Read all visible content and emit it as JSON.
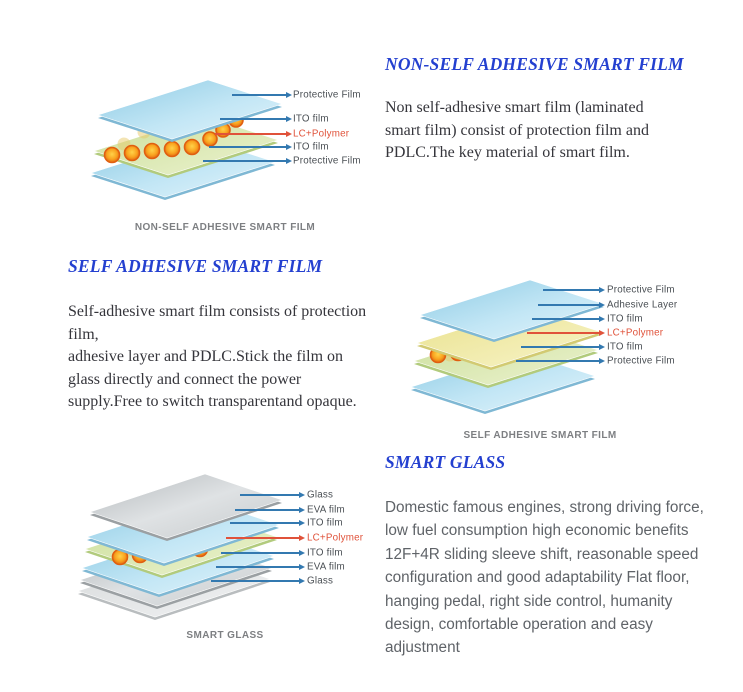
{
  "colors": {
    "heading_blue": "#2440d0",
    "leader_line_blue": "#3379b0",
    "accent_red": "#e0523a",
    "label_text_gray": "#4a4f54",
    "caption_gray": "#7d7f82"
  },
  "sections": {
    "non_self_adhesive": {
      "heading": "NON-SELF ADHESIVE SMART FILM",
      "body_lines": [
        "Non self-adhesive smart film (laminated",
        "smart film) consist of protection film and",
        "PDLC.The key material of smart film."
      ]
    },
    "self_adhesive": {
      "heading": "SELF ADHESIVE SMART FILM",
      "body_lines": [
        "Self-adhesive smart film consists of protection",
        "film,",
        "adhesive layer and PDLC.Stick the film on",
        "glass directly and connect the power",
        "supply.Free to switch transparentand opaque."
      ]
    },
    "smart_glass": {
      "heading": "SMART GLASS",
      "body_lines": [
        "Domestic famous engines, strong driving force,",
        "low fuel consumption high economic benefits",
        "12F+4R sliding sleeve shift, reasonable speed",
        "configuration and good adaptability Flat floor,",
        "hanging pedal, right side control, humanity",
        "design, comfortable operation and easy",
        "adjustment"
      ]
    }
  },
  "diagrams": [
    {
      "caption": "NON-SELF ADHESIVE SMART FILM",
      "labels": [
        {
          "text": "Protective Film",
          "accent": false
        },
        {
          "text": "ITO film",
          "accent": false
        },
        {
          "text": "LC+Polymer",
          "accent": true
        },
        {
          "text": "ITO film",
          "accent": false
        },
        {
          "text": "Protective Film",
          "accent": false
        }
      ]
    },
    {
      "caption": "SELF ADHESIVE SMART FILM",
      "labels": [
        {
          "text": "Protective Film",
          "accent": false
        },
        {
          "text": "Adhesive Layer",
          "accent": false
        },
        {
          "text": "ITO film",
          "accent": false
        },
        {
          "text": "LC+Polymer",
          "accent": true
        },
        {
          "text": "ITO film",
          "accent": false
        },
        {
          "text": "Protective Film",
          "accent": false
        }
      ]
    },
    {
      "caption": "SMART GLASS",
      "labels": [
        {
          "text": "Glass",
          "accent": false
        },
        {
          "text": "EVA film",
          "accent": false
        },
        {
          "text": "ITO film",
          "accent": false
        },
        {
          "text": "LC+Polymer",
          "accent": true
        },
        {
          "text": "ITO film",
          "accent": false
        },
        {
          "text": "EVA film",
          "accent": false
        },
        {
          "text": "Glass",
          "accent": false
        }
      ]
    }
  ]
}
